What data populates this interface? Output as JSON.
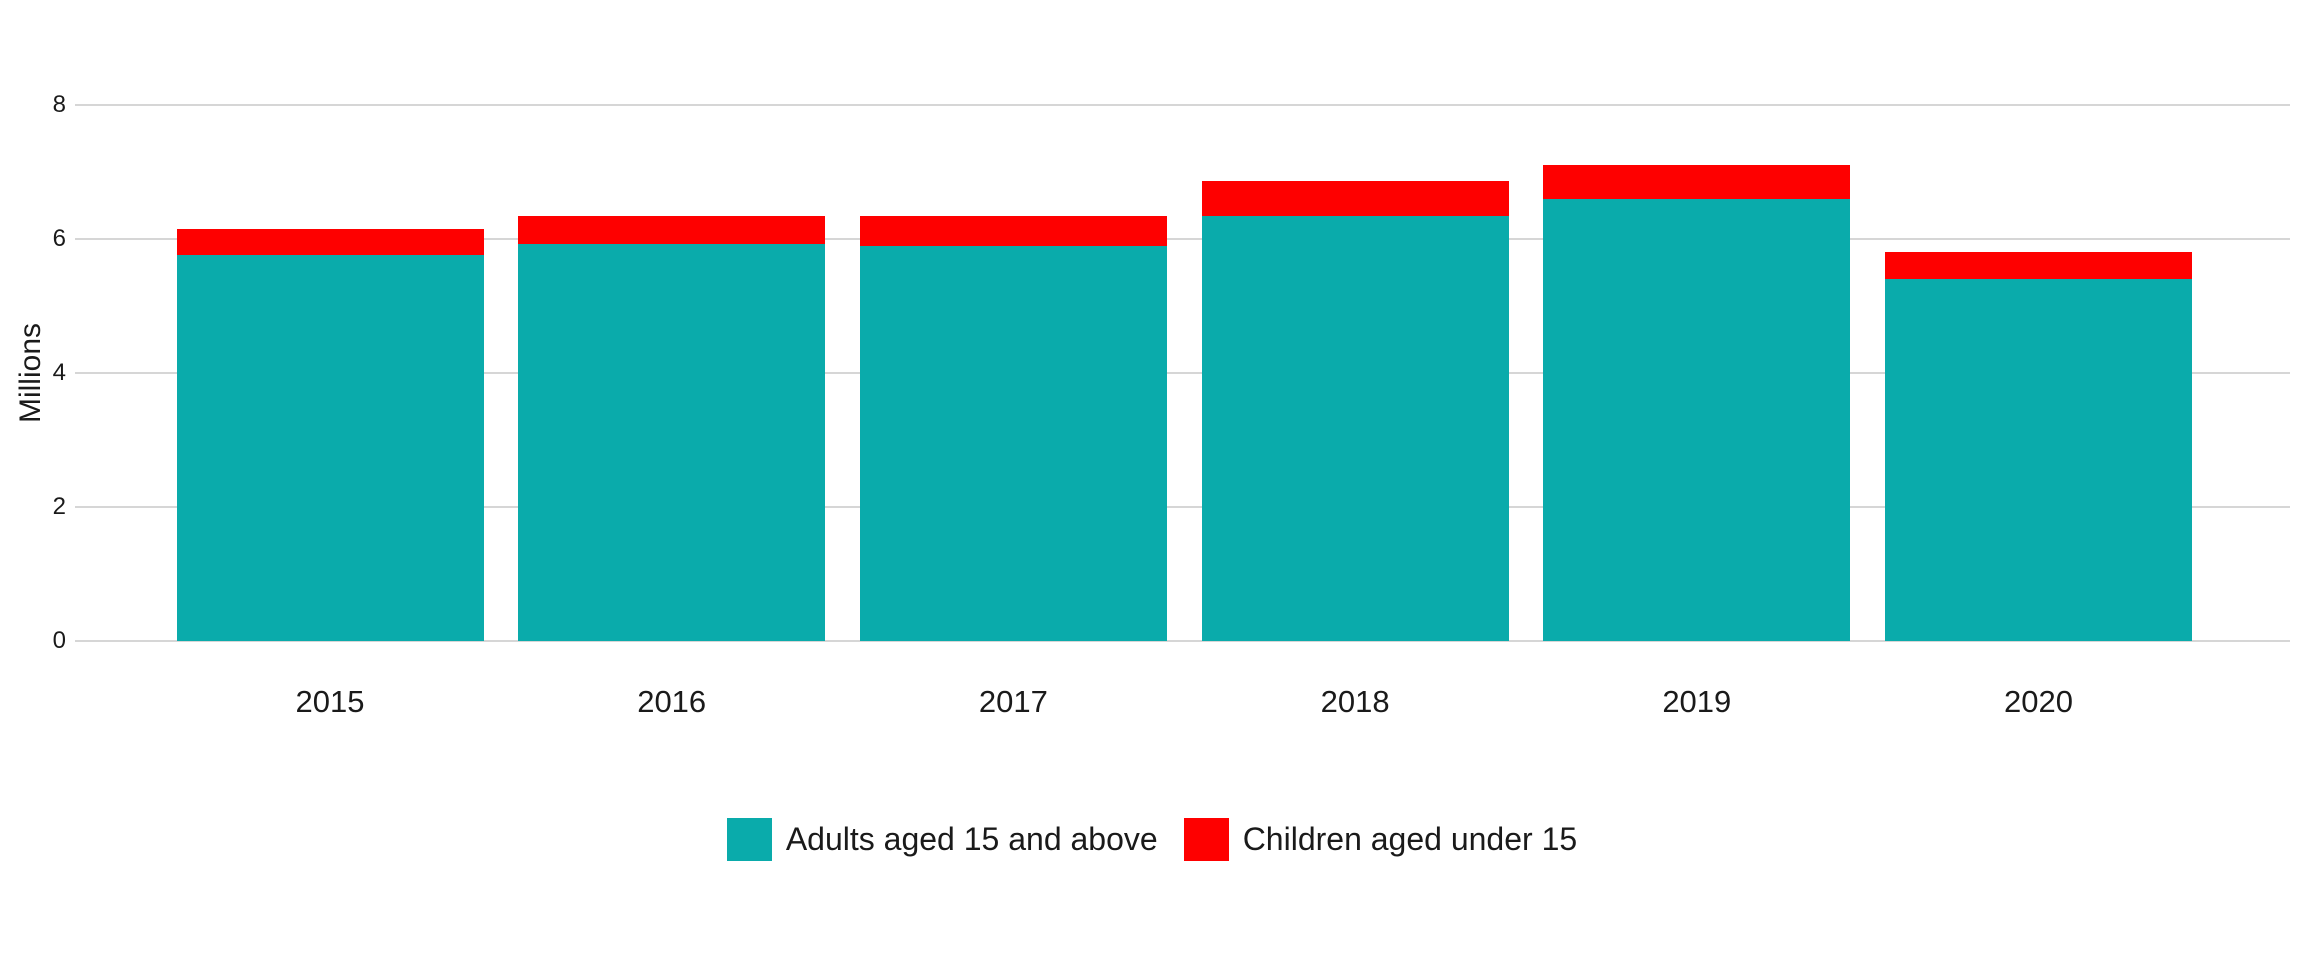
{
  "chart_data": {
    "type": "bar",
    "stacked": true,
    "categories": [
      "2015",
      "2016",
      "2017",
      "2018",
      "2019",
      "2020"
    ],
    "series": [
      {
        "name": "Adults aged 15 and above",
        "color": "#0aabab",
        "values": [
          5.76,
          5.92,
          5.9,
          6.35,
          6.6,
          5.41
        ]
      },
      {
        "name": "Children aged under 15",
        "color": "#fe0000",
        "values": [
          0.39,
          0.42,
          0.44,
          0.51,
          0.5,
          0.4
        ]
      }
    ],
    "totals": [
      6.15,
      6.34,
      6.34,
      6.86,
      7.1,
      5.81
    ],
    "title": "",
    "xlabel": "",
    "ylabel": "Millions",
    "ylim": [
      0,
      8
    ],
    "yticks": [
      0,
      2,
      4,
      6,
      8
    ],
    "grid": true,
    "legend_position": "bottom"
  },
  "colors": {
    "background": "#ffffff",
    "gridline": "#d6d6d6",
    "text": "#1a1a1a",
    "adults": "#0aabab",
    "children": "#fe0000"
  }
}
